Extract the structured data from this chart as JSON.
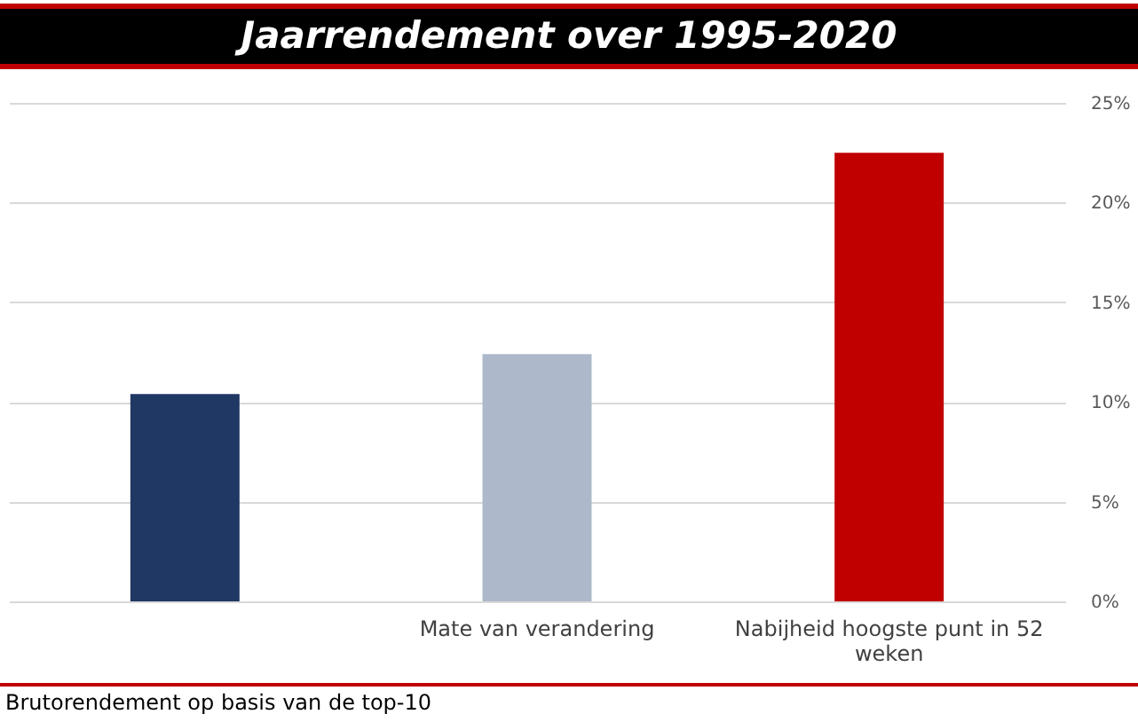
{
  "chart_data": {
    "type": "bar",
    "title": "Jaarrendement over 1995-2020",
    "categories": [
      null,
      "Mate van verandering",
      "Nabijheid hoogste punt in 52 weken"
    ],
    "values": [
      10.4,
      12.4,
      22.5
    ],
    "colors": [
      "#203864",
      "#adb9ca",
      "#c00000"
    ],
    "ylim": [
      0,
      25
    ],
    "yticks": [
      {
        "value": 0,
        "label": "0%"
      },
      {
        "value": 5,
        "label": "5%"
      },
      {
        "value": 10,
        "label": "10%"
      },
      {
        "value": 15,
        "label": "15%"
      },
      {
        "value": 20,
        "label": "20%"
      },
      {
        "value": 25,
        "label": "25%"
      }
    ],
    "grid": "y",
    "annotations": [
      "Brutorendement op basis van de top-10"
    ]
  }
}
